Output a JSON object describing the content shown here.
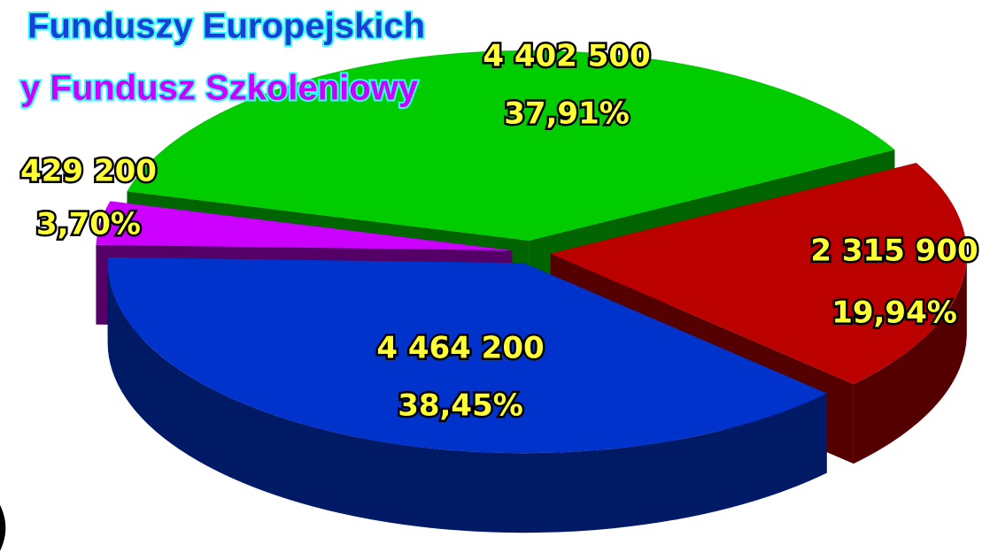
{
  "chart_data": {
    "type": "pie",
    "legend": [
      {
        "text": "Funduszy Europejskich",
        "color": "#1a3fd6"
      },
      {
        "text": "y Fundusz Szkoleniowy",
        "color": "#cc00ff"
      }
    ],
    "annotation": ")",
    "values": [
      4402500,
      2315900,
      4464200,
      429200
    ],
    "value_labels": [
      "4 402 500",
      "2 315 900",
      "4 464 200",
      "429 200"
    ],
    "percentages": [
      37.91,
      19.94,
      38.45,
      3.7
    ],
    "percentage_labels": [
      "37,91%",
      "19,94%",
      "38,45%",
      "3,70%"
    ],
    "colors": [
      "#00cc00",
      "#bb0000",
      "#0033cc",
      "#cc00ff"
    ],
    "side_colors": [
      "#006400",
      "#550000",
      "#001a66",
      "#550066"
    ]
  }
}
